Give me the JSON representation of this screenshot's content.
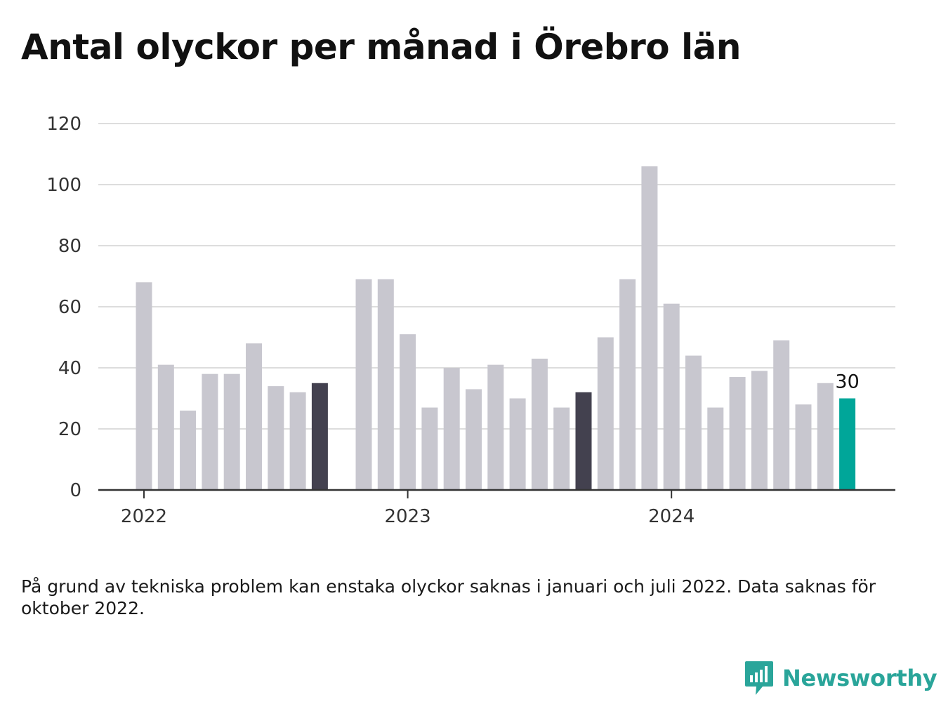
{
  "title": "Antal olyckor per månad i Örebro län",
  "note": "På grund av tekniska problem kan enstaka olyckor saknas i januari och juli 2022. Data saknas för oktober 2022.",
  "brand": {
    "name": "Newsworthy",
    "icon": "newsworthy-logo-icon",
    "color": "#2aa59a"
  },
  "colors": {
    "default": "#c8c7cf",
    "october": "#43414f",
    "latest": "#00a699",
    "grid": "#dddddd",
    "axis": "#333333"
  },
  "chart_data": {
    "type": "bar",
    "title": "Antal olyckor per månad i Örebro län",
    "xlabel": "",
    "ylabel": "",
    "ylim": [
      0,
      120
    ],
    "yticks": [
      "0",
      "20",
      "40",
      "60",
      "80",
      "100",
      "120"
    ],
    "grid": true,
    "x_tick_labels": [
      {
        "label": "2022",
        "month": "2022-01"
      },
      {
        "label": "2023",
        "month": "2023-01"
      },
      {
        "label": "2024",
        "month": "2024-01"
      }
    ],
    "months": [
      "2022-01",
      "2022-02",
      "2022-03",
      "2022-04",
      "2022-05",
      "2022-06",
      "2022-07",
      "2022-08",
      "2022-09",
      "2022-10",
      "2022-11",
      "2022-12",
      "2023-01",
      "2023-02",
      "2023-03",
      "2023-04",
      "2023-05",
      "2023-06",
      "2023-07",
      "2023-08",
      "2023-09",
      "2023-10",
      "2023-11",
      "2023-12",
      "2024-01",
      "2024-02",
      "2024-03",
      "2024-04",
      "2024-05",
      "2024-06",
      "2024-07",
      "2024-08",
      "2024-09",
      "2024-10"
    ],
    "values": [
      68,
      41,
      26,
      38,
      38,
      48,
      34,
      32,
      35,
      null,
      69,
      69,
      51,
      27,
      40,
      33,
      41,
      30,
      43,
      27,
      32,
      50,
      69,
      106,
      61,
      44,
      27,
      37,
      39,
      49,
      28,
      35,
      30,
      null
    ],
    "highlighted_dark": [
      "2022-09",
      "2023-09"
    ],
    "highlighted_latest": "2024-09",
    "data_labels": [
      {
        "month": "2024-09",
        "text": "30"
      }
    ]
  }
}
